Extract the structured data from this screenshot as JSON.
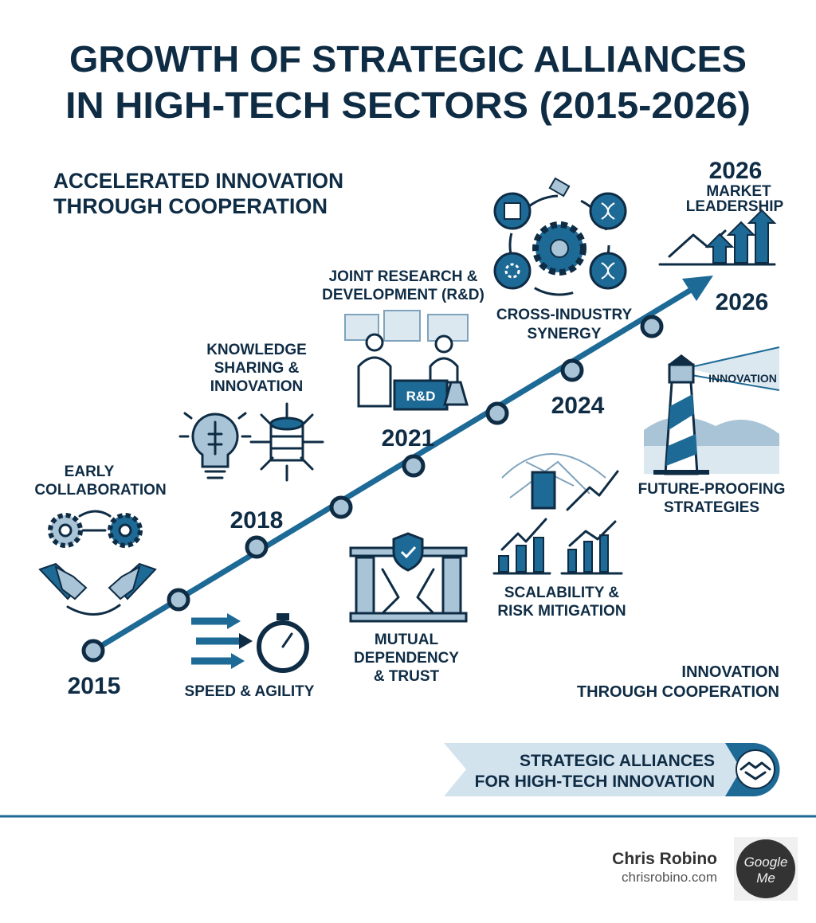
{
  "header": {
    "title": [
      "GROWTH OF STRATEGIC ALLIANCES",
      "IN HIGH-TECH SECTORS (2015-2026)"
    ],
    "subtitle": [
      "ACCELERATED INNOVATION",
      "THROUGH COOPERATION"
    ]
  },
  "timeline": {
    "years": [
      "2015",
      "2018",
      "2021",
      "2024",
      "2026"
    ],
    "top_year": "2026"
  },
  "milestones": [
    {
      "label": [
        "EARLY",
        "COLLABORATION"
      ]
    },
    {
      "label": [
        "SPEED & AGILITY"
      ]
    },
    {
      "label": [
        "KNOWLEDGE",
        "SHARING &",
        "INNOVATION"
      ]
    },
    {
      "label": [
        "MUTUAL",
        "DEPENDENCY",
        "& TRUST"
      ]
    },
    {
      "label": [
        "JOINT RESEARCH &",
        "DEVELOPMENT (R&D)"
      ]
    },
    {
      "label": [
        "SCALABILITY &",
        "RISK MITIGATION"
      ]
    },
    {
      "label": [
        "CROSS-INDUSTRY",
        "SYNERGY"
      ]
    },
    {
      "label": [
        "FUTURE-PROOFING",
        "STRATEGIES"
      ]
    },
    {
      "label": [
        "MARKET",
        "LEADERSHIP"
      ]
    }
  ],
  "icon_texts": {
    "lab_desk": "R&D",
    "lighthouse_beam": "INNOVATION"
  },
  "closing": [
    "INNOVATION",
    "THROUGH COOPERATION"
  ],
  "banner": [
    "STRATEGIC ALLIANCES",
    "FOR HIGH-TECH INNOVATION"
  ],
  "author": {
    "name": "Chris Robino",
    "site": "chrisrobino.com",
    "badge": [
      "Google",
      "Me"
    ]
  }
}
